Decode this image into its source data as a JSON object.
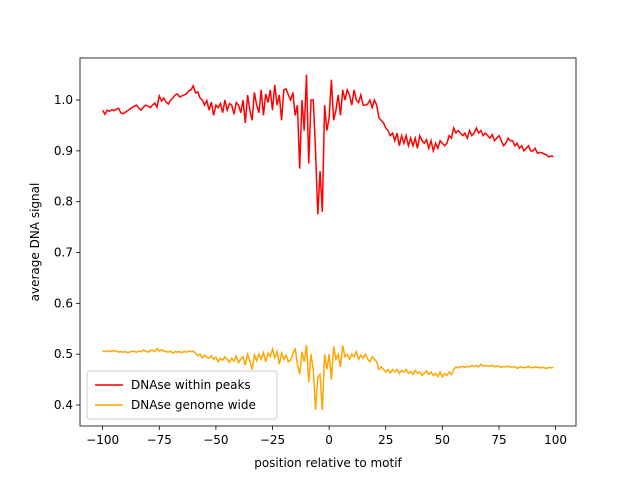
{
  "chart_data": {
    "type": "line",
    "xlabel": "position relative to motif",
    "ylabel": "average DNA signal",
    "x": [
      -100,
      -99,
      -98,
      -97,
      -96,
      -95,
      -94,
      -93,
      -92,
      -91,
      -90,
      -89,
      -88,
      -87,
      -86,
      -85,
      -84,
      -83,
      -82,
      -81,
      -80,
      -79,
      -78,
      -77,
      -76,
      -75,
      -74,
      -73,
      -72,
      -71,
      -70,
      -69,
      -68,
      -67,
      -66,
      -65,
      -64,
      -63,
      -62,
      -61,
      -60,
      -59,
      -58,
      -57,
      -56,
      -55,
      -54,
      -53,
      -52,
      -51,
      -50,
      -49,
      -48,
      -47,
      -46,
      -45,
      -44,
      -43,
      -42,
      -41,
      -40,
      -39,
      -38,
      -37,
      -36,
      -35,
      -34,
      -33,
      -32,
      -31,
      -30,
      -29,
      -28,
      -27,
      -26,
      -25,
      -24,
      -23,
      -22,
      -21,
      -20,
      -19,
      -18,
      -17,
      -16,
      -15,
      -14,
      -13,
      -12,
      -11,
      -10,
      -9,
      -8,
      -7,
      -6,
      -5,
      -4,
      -3,
      -2,
      -1,
      0,
      1,
      2,
      3,
      4,
      5,
      6,
      7,
      8,
      9,
      10,
      11,
      12,
      13,
      14,
      15,
      16,
      17,
      18,
      19,
      20,
      21,
      22,
      23,
      24,
      25,
      26,
      27,
      28,
      29,
      30,
      31,
      32,
      33,
      34,
      35,
      36,
      37,
      38,
      39,
      40,
      41,
      42,
      43,
      44,
      45,
      46,
      47,
      48,
      49,
      50,
      51,
      52,
      53,
      54,
      55,
      56,
      57,
      58,
      59,
      60,
      61,
      62,
      63,
      64,
      65,
      66,
      67,
      68,
      69,
      70,
      71,
      72,
      73,
      74,
      75,
      76,
      77,
      78,
      79,
      80,
      81,
      82,
      83,
      84,
      85,
      86,
      87,
      88,
      89,
      90,
      91,
      92,
      93,
      94,
      95,
      96,
      97,
      98,
      99
    ],
    "series": [
      {
        "name": "DNAse within peaks",
        "color": "#ff0000",
        "values": [
          0.98,
          0.972,
          0.98,
          0.978,
          0.981,
          0.979,
          0.982,
          0.984,
          0.975,
          0.973,
          0.976,
          0.979,
          0.982,
          0.985,
          0.988,
          0.99,
          0.984,
          0.98,
          0.986,
          0.99,
          0.988,
          0.985,
          0.99,
          0.994,
          0.986,
          1.008,
          0.998,
          1.004,
          0.996,
          0.992,
          1.0,
          1.004,
          1.01,
          1.012,
          1.006,
          1.008,
          1.01,
          1.012,
          1.018,
          1.02,
          1.028,
          1.014,
          1.016,
          1.004,
          1.0,
          0.99,
          0.999,
          0.98,
          0.996,
          0.97,
          0.99,
          0.985,
          0.993,
          0.975,
          1.0,
          0.98,
          0.993,
          0.99,
          0.972,
          0.995,
          0.99,
          0.975,
          1.0,
          0.955,
          1.01,
          0.98,
          0.96,
          1.015,
          0.99,
          0.975,
          1.02,
          0.97,
          1.012,
          0.995,
          1.02,
          0.98,
          1.03,
          0.99,
          1.01,
          0.96,
          1.02,
          1.022,
          1.01,
          1.0,
          1.015,
          0.97,
          0.99,
          0.865,
          1.0,
          0.94,
          1.05,
          0.875,
          1.0,
          1.0,
          0.9,
          0.775,
          0.86,
          0.78,
          0.99,
          0.94,
          0.965,
          1.04,
          0.96,
          0.98,
          1.01,
          0.97,
          1.02,
          1.0,
          1.02,
          1.01,
          0.99,
          1.02,
          1.0,
          0.995,
          1.01,
          0.99,
          0.99,
          0.992,
          1.0,
          0.985,
          1.0,
          0.99,
          0.965,
          0.96,
          0.955,
          0.945,
          0.94,
          0.93,
          0.935,
          0.92,
          0.935,
          0.91,
          0.93,
          0.915,
          0.93,
          0.91,
          0.925,
          0.91,
          0.925,
          0.905,
          0.93,
          0.92,
          0.915,
          0.922,
          0.905,
          0.92,
          0.9,
          0.915,
          0.905,
          0.92,
          0.915,
          0.91,
          0.915,
          0.93,
          0.925,
          0.945,
          0.935,
          0.94,
          0.935,
          0.93,
          0.935,
          0.925,
          0.94,
          0.93,
          0.935,
          0.945,
          0.935,
          0.94,
          0.93,
          0.935,
          0.93,
          0.925,
          0.932,
          0.92,
          0.925,
          0.93,
          0.92,
          0.91,
          0.915,
          0.925,
          0.92,
          0.92,
          0.91,
          0.915,
          0.905,
          0.91,
          0.9,
          0.905,
          0.91,
          0.9,
          0.9,
          0.905,
          0.895,
          0.897,
          0.896,
          0.894,
          0.892,
          0.888,
          0.89,
          0.889
        ]
      },
      {
        "name": "DNAse genome wide",
        "color": "#ffa500",
        "values": [
          0.506,
          0.505,
          0.507,
          0.505,
          0.506,
          0.507,
          0.506,
          0.504,
          0.505,
          0.504,
          0.505,
          0.503,
          0.504,
          0.506,
          0.505,
          0.504,
          0.506,
          0.505,
          0.508,
          0.506,
          0.504,
          0.507,
          0.508,
          0.505,
          0.511,
          0.506,
          0.509,
          0.506,
          0.505,
          0.504,
          0.506,
          0.502,
          0.505,
          0.504,
          0.505,
          0.503,
          0.505,
          0.504,
          0.506,
          0.505,
          0.506,
          0.502,
          0.497,
          0.5,
          0.493,
          0.498,
          0.494,
          0.492,
          0.497,
          0.49,
          0.494,
          0.485,
          0.492,
          0.488,
          0.495,
          0.49,
          0.484,
          0.492,
          0.486,
          0.496,
          0.483,
          0.49,
          0.495,
          0.478,
          0.5,
          0.486,
          0.47,
          0.498,
          0.487,
          0.5,
          0.49,
          0.503,
          0.485,
          0.502,
          0.495,
          0.51,
          0.493,
          0.505,
          0.48,
          0.502,
          0.49,
          0.498,
          0.485,
          0.488,
          0.5,
          0.512,
          0.48,
          0.46,
          0.505,
          0.485,
          0.518,
          0.445,
          0.5,
          0.47,
          0.39,
          0.455,
          0.46,
          0.39,
          0.5,
          0.47,
          0.5,
          0.45,
          0.515,
          0.49,
          0.5,
          0.475,
          0.517,
          0.495,
          0.5,
          0.49,
          0.5,
          0.495,
          0.505,
          0.49,
          0.498,
          0.492,
          0.5,
          0.49,
          0.485,
          0.495,
          0.49,
          0.485,
          0.47,
          0.475,
          0.47,
          0.465,
          0.47,
          0.463,
          0.47,
          0.465,
          0.47,
          0.462,
          0.468,
          0.465,
          0.47,
          0.462,
          0.466,
          0.46,
          0.468,
          0.462,
          0.465,
          0.458,
          0.462,
          0.467,
          0.46,
          0.465,
          0.458,
          0.462,
          0.456,
          0.465,
          0.455,
          0.462,
          0.458,
          0.465,
          0.46,
          0.47,
          0.475,
          0.473,
          0.475,
          0.476,
          0.474,
          0.476,
          0.475,
          0.478,
          0.476,
          0.477,
          0.475,
          0.48,
          0.476,
          0.478,
          0.477,
          0.476,
          0.478,
          0.475,
          0.477,
          0.476,
          0.474,
          0.476,
          0.475,
          0.476,
          0.475,
          0.474,
          0.476,
          0.472,
          0.474,
          0.475,
          0.473,
          0.474,
          0.476,
          0.474,
          0.473,
          0.475,
          0.474,
          0.473,
          0.474,
          0.473,
          0.472,
          0.474,
          0.473,
          0.474
        ]
      }
    ],
    "xlim": [
      -110,
      109
    ],
    "ylim": [
      0.3587,
      1.0827
    ],
    "xticks": [
      {
        "value": -100,
        "label": "−100"
      },
      {
        "value": -75,
        "label": "−75"
      },
      {
        "value": -50,
        "label": "−50"
      },
      {
        "value": -25,
        "label": "−25"
      },
      0,
      25,
      50,
      75,
      100
    ],
    "yticks": [
      0.4,
      0.5,
      0.6,
      0.7,
      0.8,
      0.9,
      {
        "value": 1,
        "label": "1.0"
      }
    ],
    "legend": "lower left"
  }
}
